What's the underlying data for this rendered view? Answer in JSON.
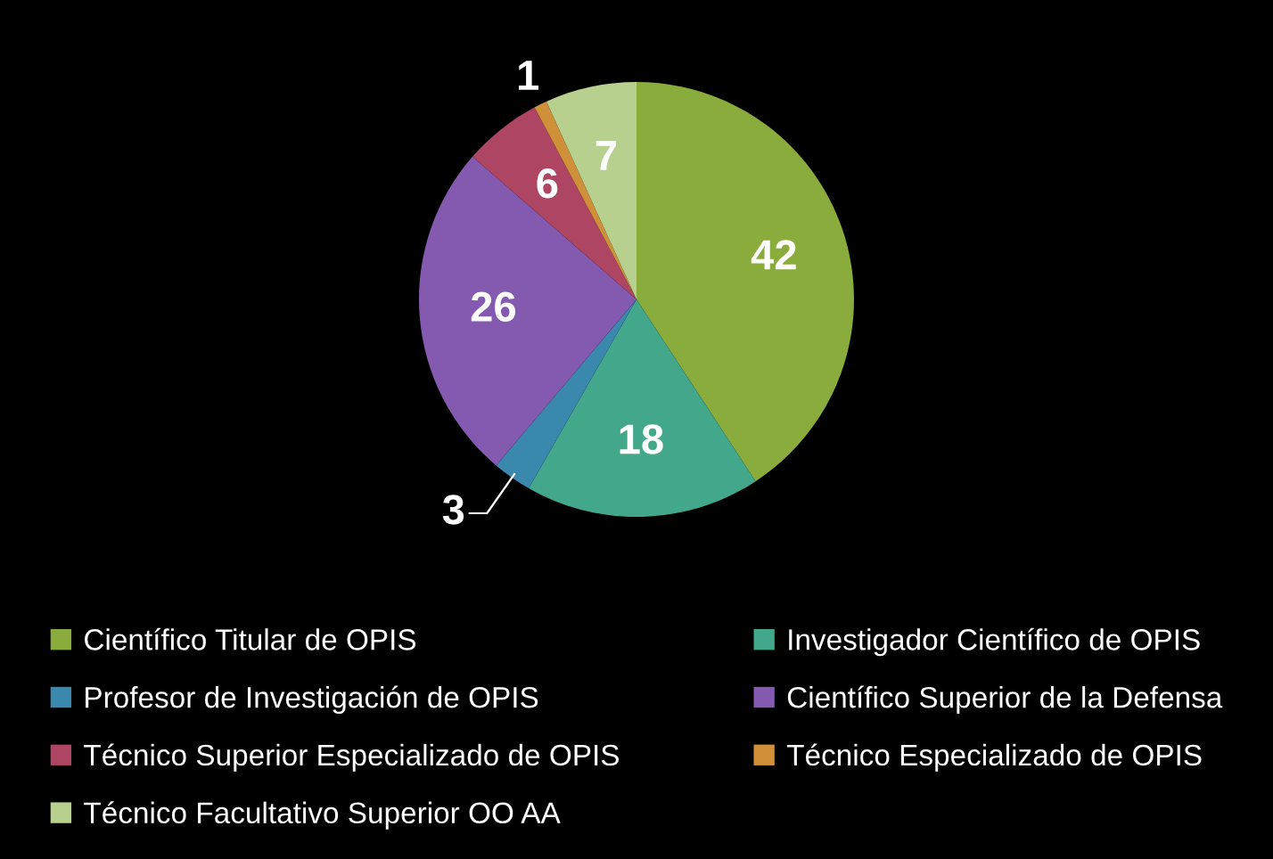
{
  "chart_data": {
    "type": "pie",
    "categories": [
      "Científico Titular de OPIS",
      "Investigador Científico de OPIS",
      "Profesor de Investigación de OPIS",
      "Científico Superior de la Defensa",
      "Técnico Superior Especializado de OPIS",
      "Técnico Especializado de OPIS",
      "Técnico Facultativo Superior OO AA"
    ],
    "values": [
      42,
      18,
      3,
      26,
      6,
      1,
      7
    ],
    "colors": [
      "#8aac3c",
      "#43a78c",
      "#3a88ae",
      "#8459b0",
      "#ae4563",
      "#d0903a",
      "#b8d08e"
    ],
    "data_labels": true,
    "legend": "bottom"
  }
}
